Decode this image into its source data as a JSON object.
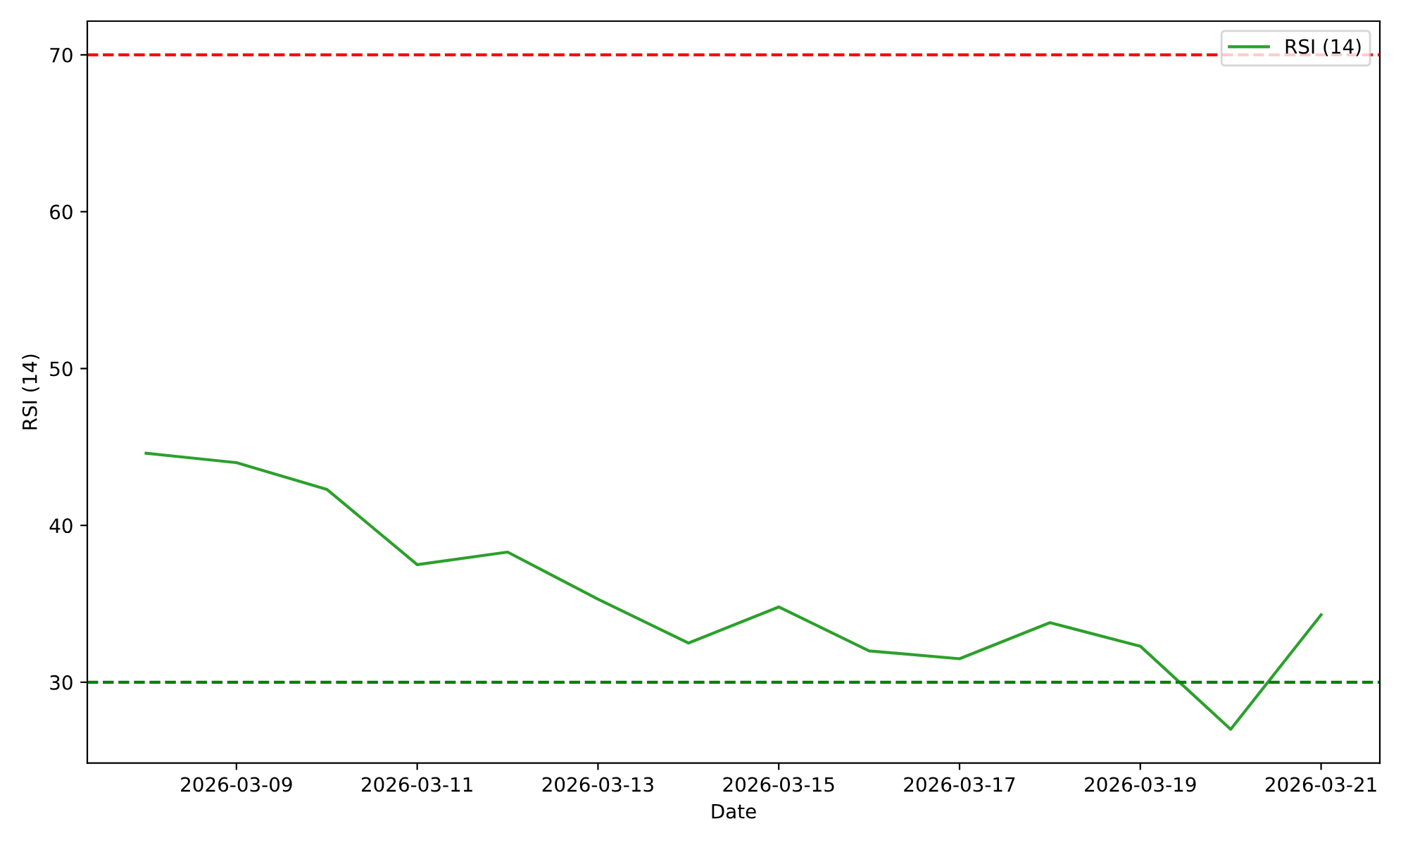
{
  "chart_data": {
    "type": "line",
    "xlabel": "Date",
    "ylabel": "RSI (14)",
    "x": [
      "2026-03-08",
      "2026-03-09",
      "2026-03-10",
      "2026-03-11",
      "2026-03-12",
      "2026-03-13",
      "2026-03-14",
      "2026-03-15",
      "2026-03-16",
      "2026-03-17",
      "2026-03-18",
      "2026-03-19",
      "2026-03-20",
      "2026-03-21"
    ],
    "series": [
      {
        "name": "RSI (14)",
        "color": "#2ca02c",
        "values": [
          44.6,
          44.0,
          42.3,
          37.5,
          38.3,
          35.3,
          32.5,
          34.8,
          32.0,
          31.5,
          33.8,
          32.3,
          27.0,
          34.3
        ]
      }
    ],
    "ref_lines": [
      {
        "axis": "y",
        "value": 70,
        "color": "#ff0000",
        "line_style": "dashed"
      },
      {
        "axis": "y",
        "value": 30,
        "color": "#008000",
        "line_style": "dashed"
      }
    ],
    "xlim": [
      "2026-03-07T08:24",
      "2026-03-21T15:36"
    ],
    "xticks": [
      "2026-03-09",
      "2026-03-11",
      "2026-03-13",
      "2026-03-15",
      "2026-03-17",
      "2026-03-19",
      "2026-03-21"
    ],
    "ylim": [
      24.85,
      72.15
    ],
    "yticks": [
      30,
      40,
      50,
      60,
      70
    ],
    "grid": false,
    "legend": "top right",
    "marker": "none",
    "line_style": "solid"
  }
}
